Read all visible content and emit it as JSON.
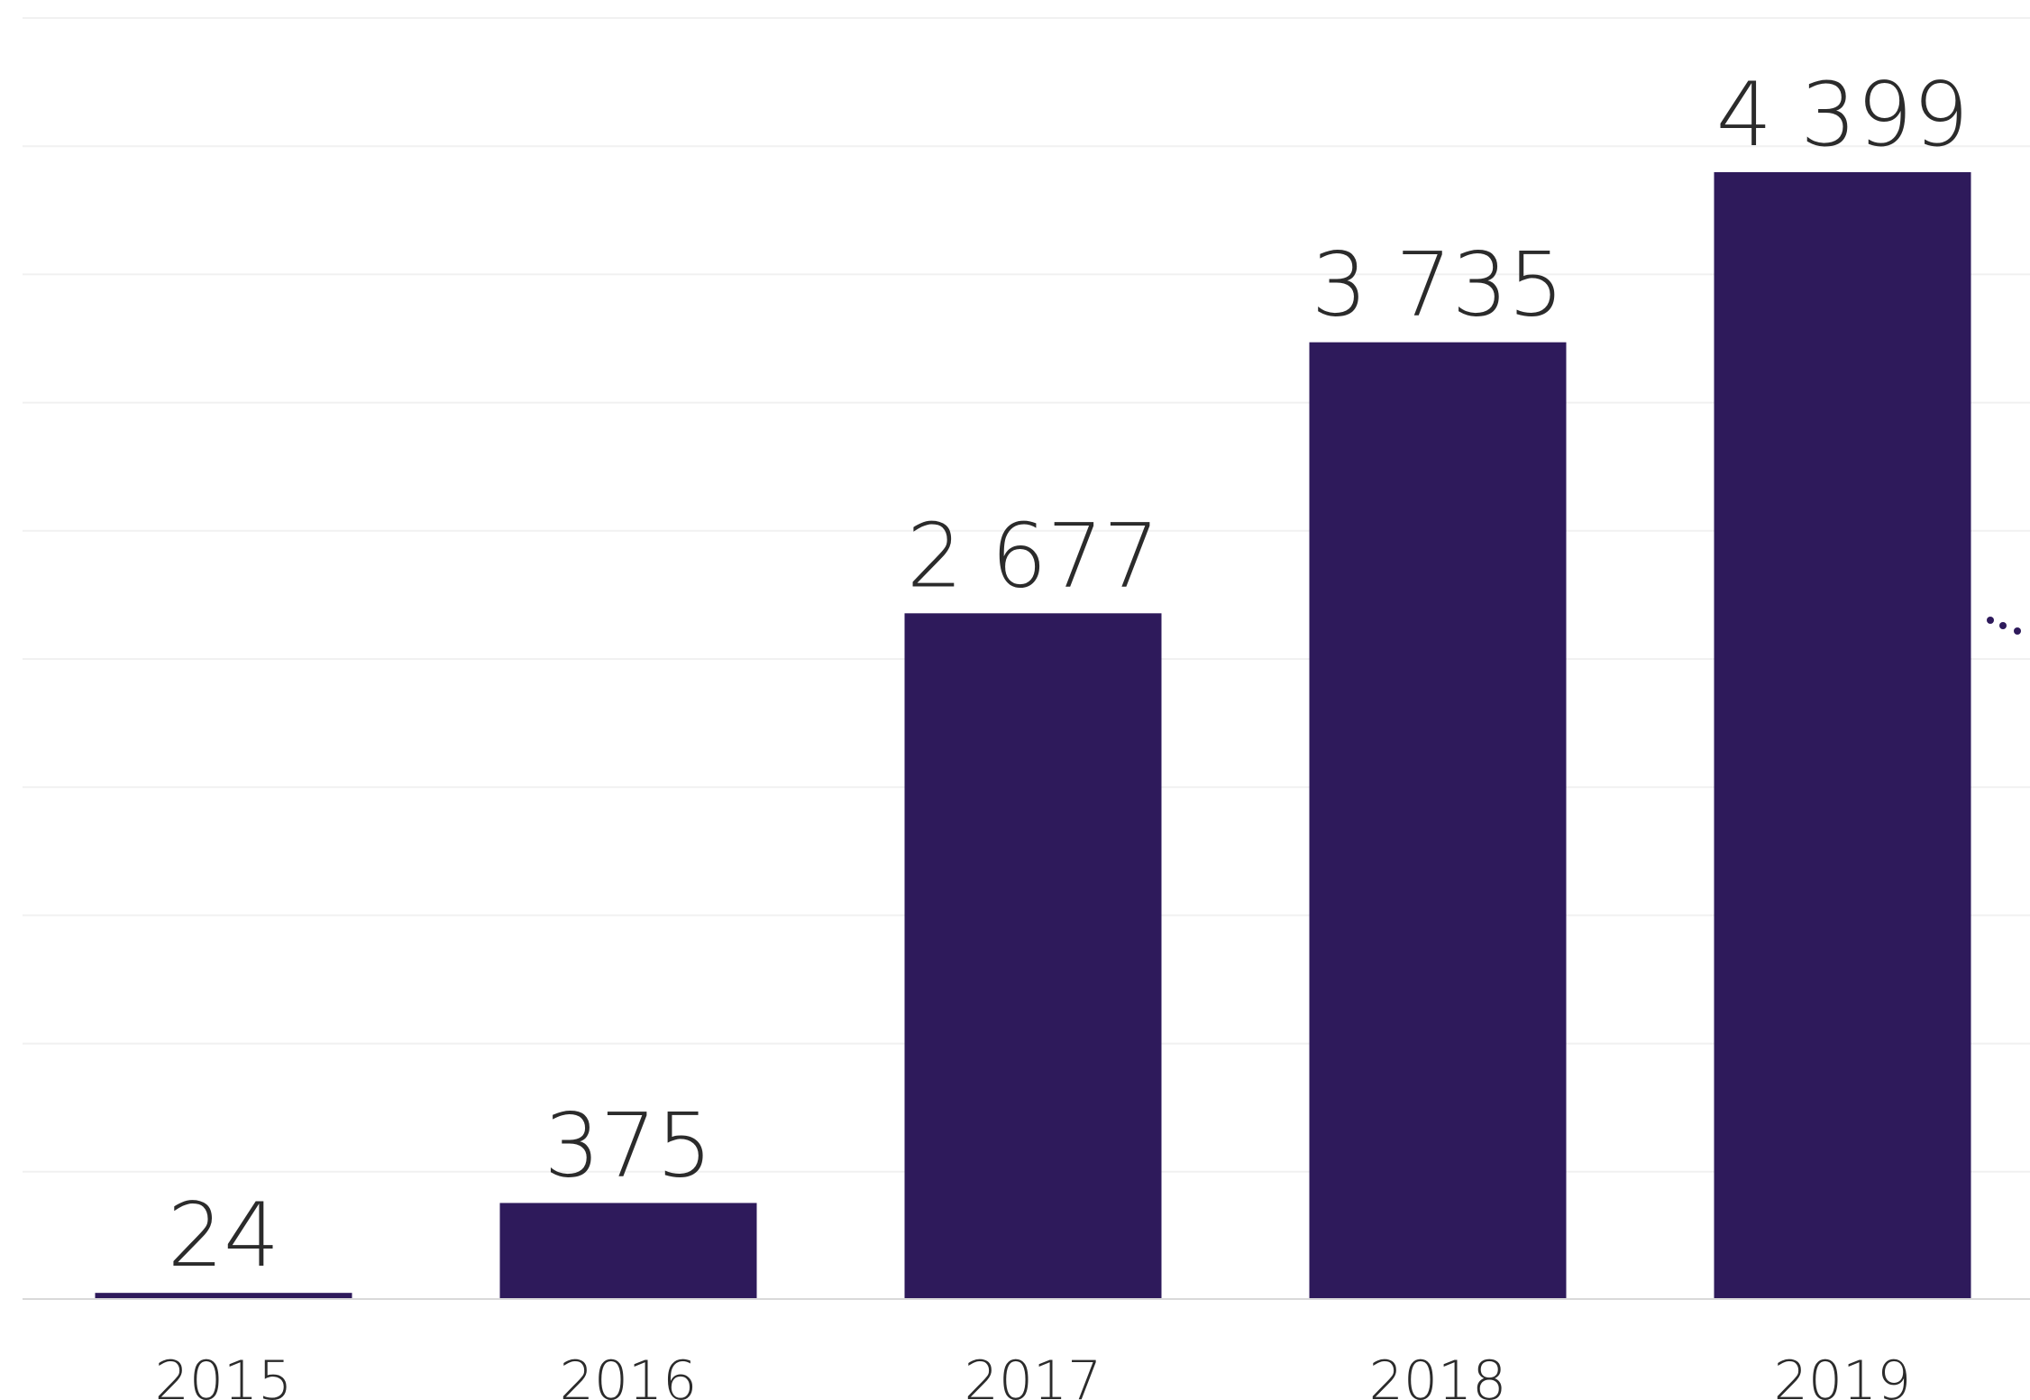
{
  "chart_data": {
    "type": "bar",
    "categories": [
      "2015",
      "2016",
      "2017",
      "2018",
      "2019"
    ],
    "values": [
      24,
      375,
      2677,
      3735,
      4399
    ],
    "value_labels": [
      "24",
      "375",
      "2 677",
      "3 735",
      "4 399"
    ],
    "ylim": [
      0,
      5000
    ],
    "grid": true,
    "legend": "none",
    "colors": {
      "bar": "#2e1a5b",
      "gridline": "#f1f1f1",
      "baseline": "#d9d9d9",
      "text": "#2b2b2b",
      "marker": "#2e1a5b"
    }
  }
}
